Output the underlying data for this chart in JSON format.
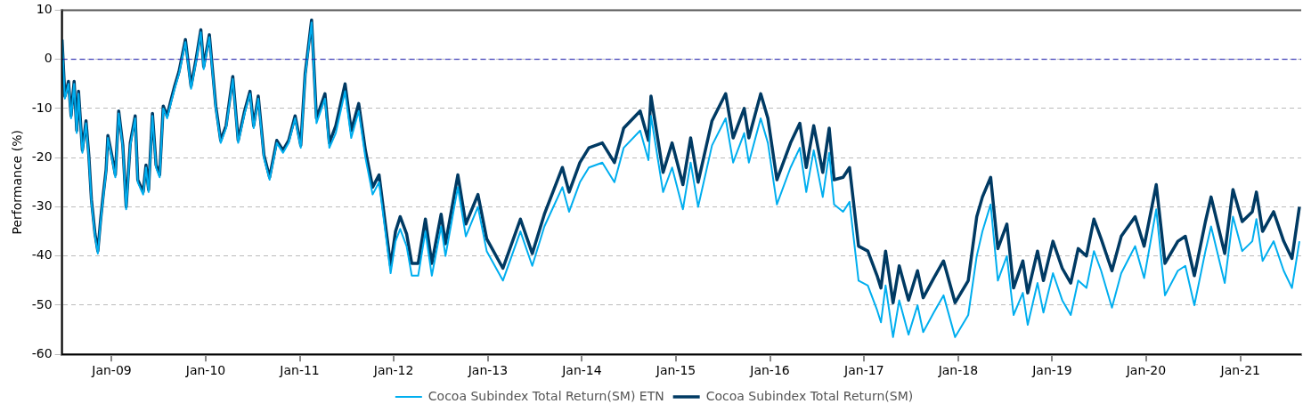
{
  "chart_data": {
    "type": "line",
    "ylabel": "Performance (%)",
    "x": [
      "2008-06-22",
      "2008-07-03",
      "2008-07-17",
      "2008-07-27",
      "2008-08-08",
      "2008-08-18",
      "2008-08-25",
      "2008-09-09",
      "2008-09-23",
      "2008-10-04",
      "2008-10-14",
      "2008-10-28",
      "2008-11-08",
      "2008-11-19",
      "2008-11-29",
      "2008-12-10",
      "2008-12-17",
      "2009-01-01",
      "2009-01-15",
      "2009-01-28",
      "2009-02-13",
      "2009-02-26",
      "2009-03-14",
      "2009-04-02",
      "2009-04-12",
      "2009-05-03",
      "2009-05-14",
      "2009-05-24",
      "2009-06-08",
      "2009-06-22",
      "2009-07-06",
      "2009-07-20",
      "2009-08-04",
      "2009-08-18",
      "2009-09-02",
      "2009-09-19",
      "2009-10-14",
      "2009-11-05",
      "2009-11-26",
      "2009-12-13",
      "2009-12-24",
      "2010-01-15",
      "2010-02-09",
      "2010-02-28",
      "2010-03-21",
      "2010-04-16",
      "2010-05-07",
      "2010-06-01",
      "2010-06-22",
      "2010-07-06",
      "2010-07-24",
      "2010-08-15",
      "2010-09-06",
      "2010-10-04",
      "2010-10-28",
      "2010-11-19",
      "2010-12-14",
      "2011-01-05",
      "2011-01-22",
      "2011-02-16",
      "2011-03-07",
      "2011-04-09",
      "2011-04-26",
      "2011-05-21",
      "2011-06-26",
      "2011-07-20",
      "2011-08-18",
      "2011-09-13",
      "2011-10-11",
      "2011-11-05",
      "2011-12-03",
      "2011-12-20",
      "2012-01-08",
      "2012-01-26",
      "2012-02-20",
      "2012-03-11",
      "2012-04-05",
      "2012-05-03",
      "2012-05-28",
      "2012-07-03",
      "2012-07-20",
      "2012-09-06",
      "2012-10-07",
      "2012-11-23",
      "2012-12-27",
      "2013-02-28",
      "2013-05-07",
      "2013-06-22",
      "2013-08-08",
      "2013-10-17",
      "2013-11-12",
      "2013-12-24",
      "2014-01-28",
      "2014-03-21",
      "2014-05-07",
      "2014-06-12",
      "2014-08-15",
      "2014-09-16",
      "2014-09-26",
      "2014-11-12",
      "2014-12-17",
      "2015-01-28",
      "2015-02-27",
      "2015-03-28",
      "2015-05-21",
      "2015-07-13",
      "2015-08-11",
      "2015-09-23",
      "2015-10-11",
      "2015-11-26",
      "2015-12-24",
      "2016-01-28",
      "2016-03-21",
      "2016-04-26",
      "2016-05-21",
      "2016-06-19",
      "2016-07-24",
      "2016-08-18",
      "2016-09-06",
      "2016-10-11",
      "2016-11-05",
      "2016-12-10",
      "2017-01-15",
      "2017-02-20",
      "2017-03-07",
      "2017-03-25",
      "2017-04-23",
      "2017-05-17",
      "2017-06-22",
      "2017-07-27",
      "2017-08-18",
      "2017-09-28",
      "2017-11-05",
      "2017-12-20",
      "2018-02-09",
      "2018-03-14",
      "2018-04-05",
      "2018-05-07",
      "2018-06-04",
      "2018-07-09",
      "2018-08-04",
      "2018-09-09",
      "2018-09-28",
      "2018-11-05",
      "2018-11-28",
      "2019-01-04",
      "2019-02-09",
      "2019-03-14",
      "2019-04-12",
      "2019-05-14",
      "2019-06-12",
      "2019-07-10",
      "2019-08-21",
      "2019-09-26",
      "2019-11-19",
      "2019-12-24",
      "2020-02-09",
      "2020-03-14",
      "2020-05-03",
      "2020-06-01",
      "2020-07-06",
      "2020-08-18",
      "2020-09-09",
      "2020-11-01",
      "2020-12-03",
      "2021-01-08",
      "2021-02-16",
      "2021-03-04",
      "2021-03-28",
      "2021-05-10",
      "2021-06-18",
      "2021-07-20",
      "2021-08-18"
    ],
    "series": [
      {
        "name": "Cocoa Subindex Total Return(SM) ETN",
        "color": "#00aeef",
        "values": [
          4,
          -8,
          -5,
          -12,
          -5,
          -15,
          -7,
          -19,
          -13,
          -20,
          -29,
          -36,
          -39.5,
          -33,
          -28,
          -23,
          -16,
          -20,
          -24,
          -11,
          -18,
          -30.5,
          -17.5,
          -12,
          -25,
          -27.5,
          -22,
          -27,
          -11.5,
          -22,
          -24,
          -10,
          -12,
          -9,
          -6,
          -3,
          3.5,
          -6,
          0,
          5.5,
          -2,
          4.5,
          -10,
          -17,
          -14,
          -4,
          -17,
          -11,
          -7,
          -14,
          -8,
          -20,
          -24.5,
          -17,
          -19,
          -17,
          -12,
          -18,
          -3.5,
          7.5,
          -13,
          -8,
          -18,
          -15,
          -6.5,
          -16,
          -10.5,
          -20,
          -27.5,
          -25,
          -36.5,
          -43.5,
          -37,
          -34.5,
          -38,
          -44,
          -44,
          -35,
          -44,
          -34,
          -40,
          -26,
          -36,
          -30,
          -39,
          -45,
          -35,
          -42,
          -34,
          -26,
          -31,
          -25,
          -22,
          -21,
          -25,
          -18,
          -14.5,
          -20.5,
          -11.5,
          -27,
          -22,
          -30.5,
          -21,
          -30,
          -17.5,
          -12,
          -21,
          -15,
          -21,
          -12,
          -17,
          -29.5,
          -22,
          -18,
          -27,
          -18.5,
          -28,
          -19,
          -29.5,
          -31,
          -29,
          -45,
          -46,
          -51,
          -53.5,
          -46,
          -56.5,
          -49,
          -56,
          -50,
          -55.5,
          -51.5,
          -48,
          -56.5,
          -52,
          -40,
          -35,
          -29.5,
          -45,
          -40,
          -52,
          -47.5,
          -54,
          -45.5,
          -51.5,
          -43.5,
          -49,
          -52,
          -45,
          -46.5,
          -39,
          -43,
          -50.5,
          -43.5,
          -38,
          -44.5,
          -30.5,
          -48,
          -43,
          -42,
          -50,
          -39,
          -34,
          -45.5,
          -32,
          -39,
          -37,
          -32.5,
          -41,
          -37,
          -43,
          -46.5,
          -37
        ]
      },
      {
        "name": "Cocoa Subindex Total Return(SM)",
        "color": "#003a63",
        "values": [
          4,
          -7.5,
          -4.5,
          -11.5,
          -4.5,
          -14.5,
          -6.5,
          -18.5,
          -12.5,
          -19.5,
          -28.5,
          -35.5,
          -39,
          -32.5,
          -27.5,
          -22.5,
          -15.5,
          -19.5,
          -23.5,
          -10.5,
          -17.5,
          -30,
          -17,
          -11.5,
          -24.5,
          -27,
          -21.5,
          -26.5,
          -11,
          -21.5,
          -23.5,
          -9.5,
          -11.5,
          -8.5,
          -5.5,
          -2.5,
          4,
          -5.5,
          0.5,
          6,
          -1.5,
          5,
          -9.5,
          -16.5,
          -13.5,
          -3.5,
          -16.5,
          -10.5,
          -6.5,
          -13.5,
          -7.5,
          -19.5,
          -24,
          -16.5,
          -18.5,
          -16.5,
          -11.5,
          -17.5,
          -3,
          8,
          -12,
          -7,
          -17,
          -13.5,
          -5,
          -14.5,
          -9,
          -18.5,
          -26,
          -23.5,
          -35,
          -42,
          -35,
          -32,
          -35.5,
          -41.5,
          -41.5,
          -32.5,
          -41.5,
          -31.5,
          -37.5,
          -23.5,
          -33.5,
          -27.5,
          -36.5,
          -42.5,
          -32.5,
          -39.5,
          -31.5,
          -22,
          -27,
          -21,
          -18,
          -17,
          -21,
          -14,
          -10.5,
          -16.5,
          -7.5,
          -23,
          -17,
          -25.5,
          -16,
          -25,
          -12.5,
          -7,
          -16,
          -10,
          -16,
          -7,
          -12,
          -24.5,
          -17,
          -13,
          -22,
          -13.5,
          -23,
          -14,
          -24.5,
          -24,
          -22,
          -38,
          -39,
          -44,
          -46.5,
          -39,
          -49.5,
          -42,
          -49,
          -43,
          -48.5,
          -44.5,
          -41,
          -49.5,
          -45,
          -32,
          -28,
          -24,
          -38.5,
          -33.5,
          -46.5,
          -41,
          -47.5,
          -39,
          -45,
          -37,
          -42.5,
          -45.5,
          -38.5,
          -40,
          -32.5,
          -36.5,
          -43,
          -36,
          -32,
          -38,
          -25.5,
          -41.5,
          -37,
          -36,
          -44,
          -33,
          -28,
          -39.5,
          -26.5,
          -33,
          -31,
          -27,
          -35,
          -31,
          -37,
          -40.5,
          -30
        ]
      }
    ],
    "xlim": [
      "2008-06-22",
      "2021-08-25"
    ],
    "xticks": [
      {
        "value": "2009-01-01",
        "label": "Jan-09"
      },
      {
        "value": "2010-01-01",
        "label": "Jan-10"
      },
      {
        "value": "2011-01-01",
        "label": "Jan-11"
      },
      {
        "value": "2012-01-01",
        "label": "Jan-12"
      },
      {
        "value": "2013-01-01",
        "label": "Jan-13"
      },
      {
        "value": "2014-01-01",
        "label": "Jan-14"
      },
      {
        "value": "2015-01-01",
        "label": "Jan-15"
      },
      {
        "value": "2016-01-01",
        "label": "Jan-16"
      },
      {
        "value": "2017-01-01",
        "label": "Jan-17"
      },
      {
        "value": "2018-01-01",
        "label": "Jan-18"
      },
      {
        "value": "2019-01-01",
        "label": "Jan-19"
      },
      {
        "value": "2020-01-01",
        "label": "Jan-20"
      },
      {
        "value": "2021-01-01",
        "label": "Jan-21"
      }
    ],
    "ylim": [
      -60,
      10
    ],
    "yticks": [
      -60,
      -50,
      -40,
      -30,
      -20,
      -10,
      0,
      10
    ],
    "ref_lines": [
      {
        "axis": "y",
        "value": 0,
        "color": "#1a1ab0",
        "line_style": "dashed"
      }
    ],
    "grid": "y",
    "legend": "bottom"
  }
}
